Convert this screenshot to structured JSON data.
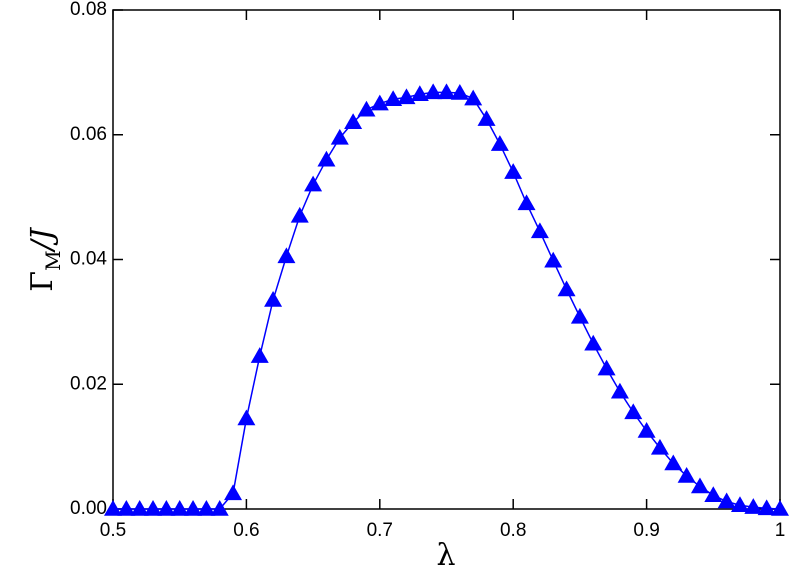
{
  "chart_data": {
    "type": "line",
    "xlabel": "λ",
    "ylabel": {
      "symbol": "Γ",
      "subscript": "M",
      "suffix": "/J"
    },
    "x": [
      0.5,
      0.51,
      0.52,
      0.53,
      0.54,
      0.55,
      0.56,
      0.57,
      0.58,
      0.59,
      0.6,
      0.61,
      0.62,
      0.63,
      0.64,
      0.65,
      0.66,
      0.67,
      0.68,
      0.69,
      0.7,
      0.71,
      0.72,
      0.73,
      0.74,
      0.75,
      0.76,
      0.77,
      0.78,
      0.79,
      0.8,
      0.81,
      0.82,
      0.83,
      0.84,
      0.85,
      0.86,
      0.87,
      0.88,
      0.89,
      0.9,
      0.91,
      0.92,
      0.93,
      0.94,
      0.95,
      0.96,
      0.97,
      0.98,
      0.99,
      1.0
    ],
    "series": [
      {
        "color": "#0000ff",
        "marker": "triangle",
        "values": [
          0,
          0,
          0,
          0,
          0,
          0,
          0,
          0,
          0,
          0.0025,
          0.0145,
          0.0245,
          0.0335,
          0.0405,
          0.047,
          0.052,
          0.056,
          0.0595,
          0.062,
          0.064,
          0.065,
          0.0657,
          0.066,
          0.0665,
          0.0668,
          0.0668,
          0.0667,
          0.0658,
          0.0625,
          0.0585,
          0.054,
          0.049,
          0.0445,
          0.0398,
          0.0352,
          0.0308,
          0.0265,
          0.0225,
          0.0188,
          0.0155,
          0.0125,
          0.0098,
          0.0073,
          0.0053,
          0.0036,
          0.0022,
          0.0012,
          0.0006,
          0.0003,
          0.0001,
          0
        ]
      }
    ],
    "xlim": [
      0.5,
      1
    ],
    "ylim": [
      0,
      0.08
    ],
    "xticks": [
      0.5,
      0.6,
      0.7,
      0.8,
      0.9,
      1
    ],
    "yticks": [
      {
        "value": 0,
        "label": "0.00"
      },
      {
        "value": 0.02,
        "label": "0.02"
      },
      {
        "value": 0.04,
        "label": "0.04"
      },
      {
        "value": 0.06,
        "label": "0.06"
      },
      {
        "value": 0.08,
        "label": "0.08"
      }
    ],
    "grid": false
  }
}
